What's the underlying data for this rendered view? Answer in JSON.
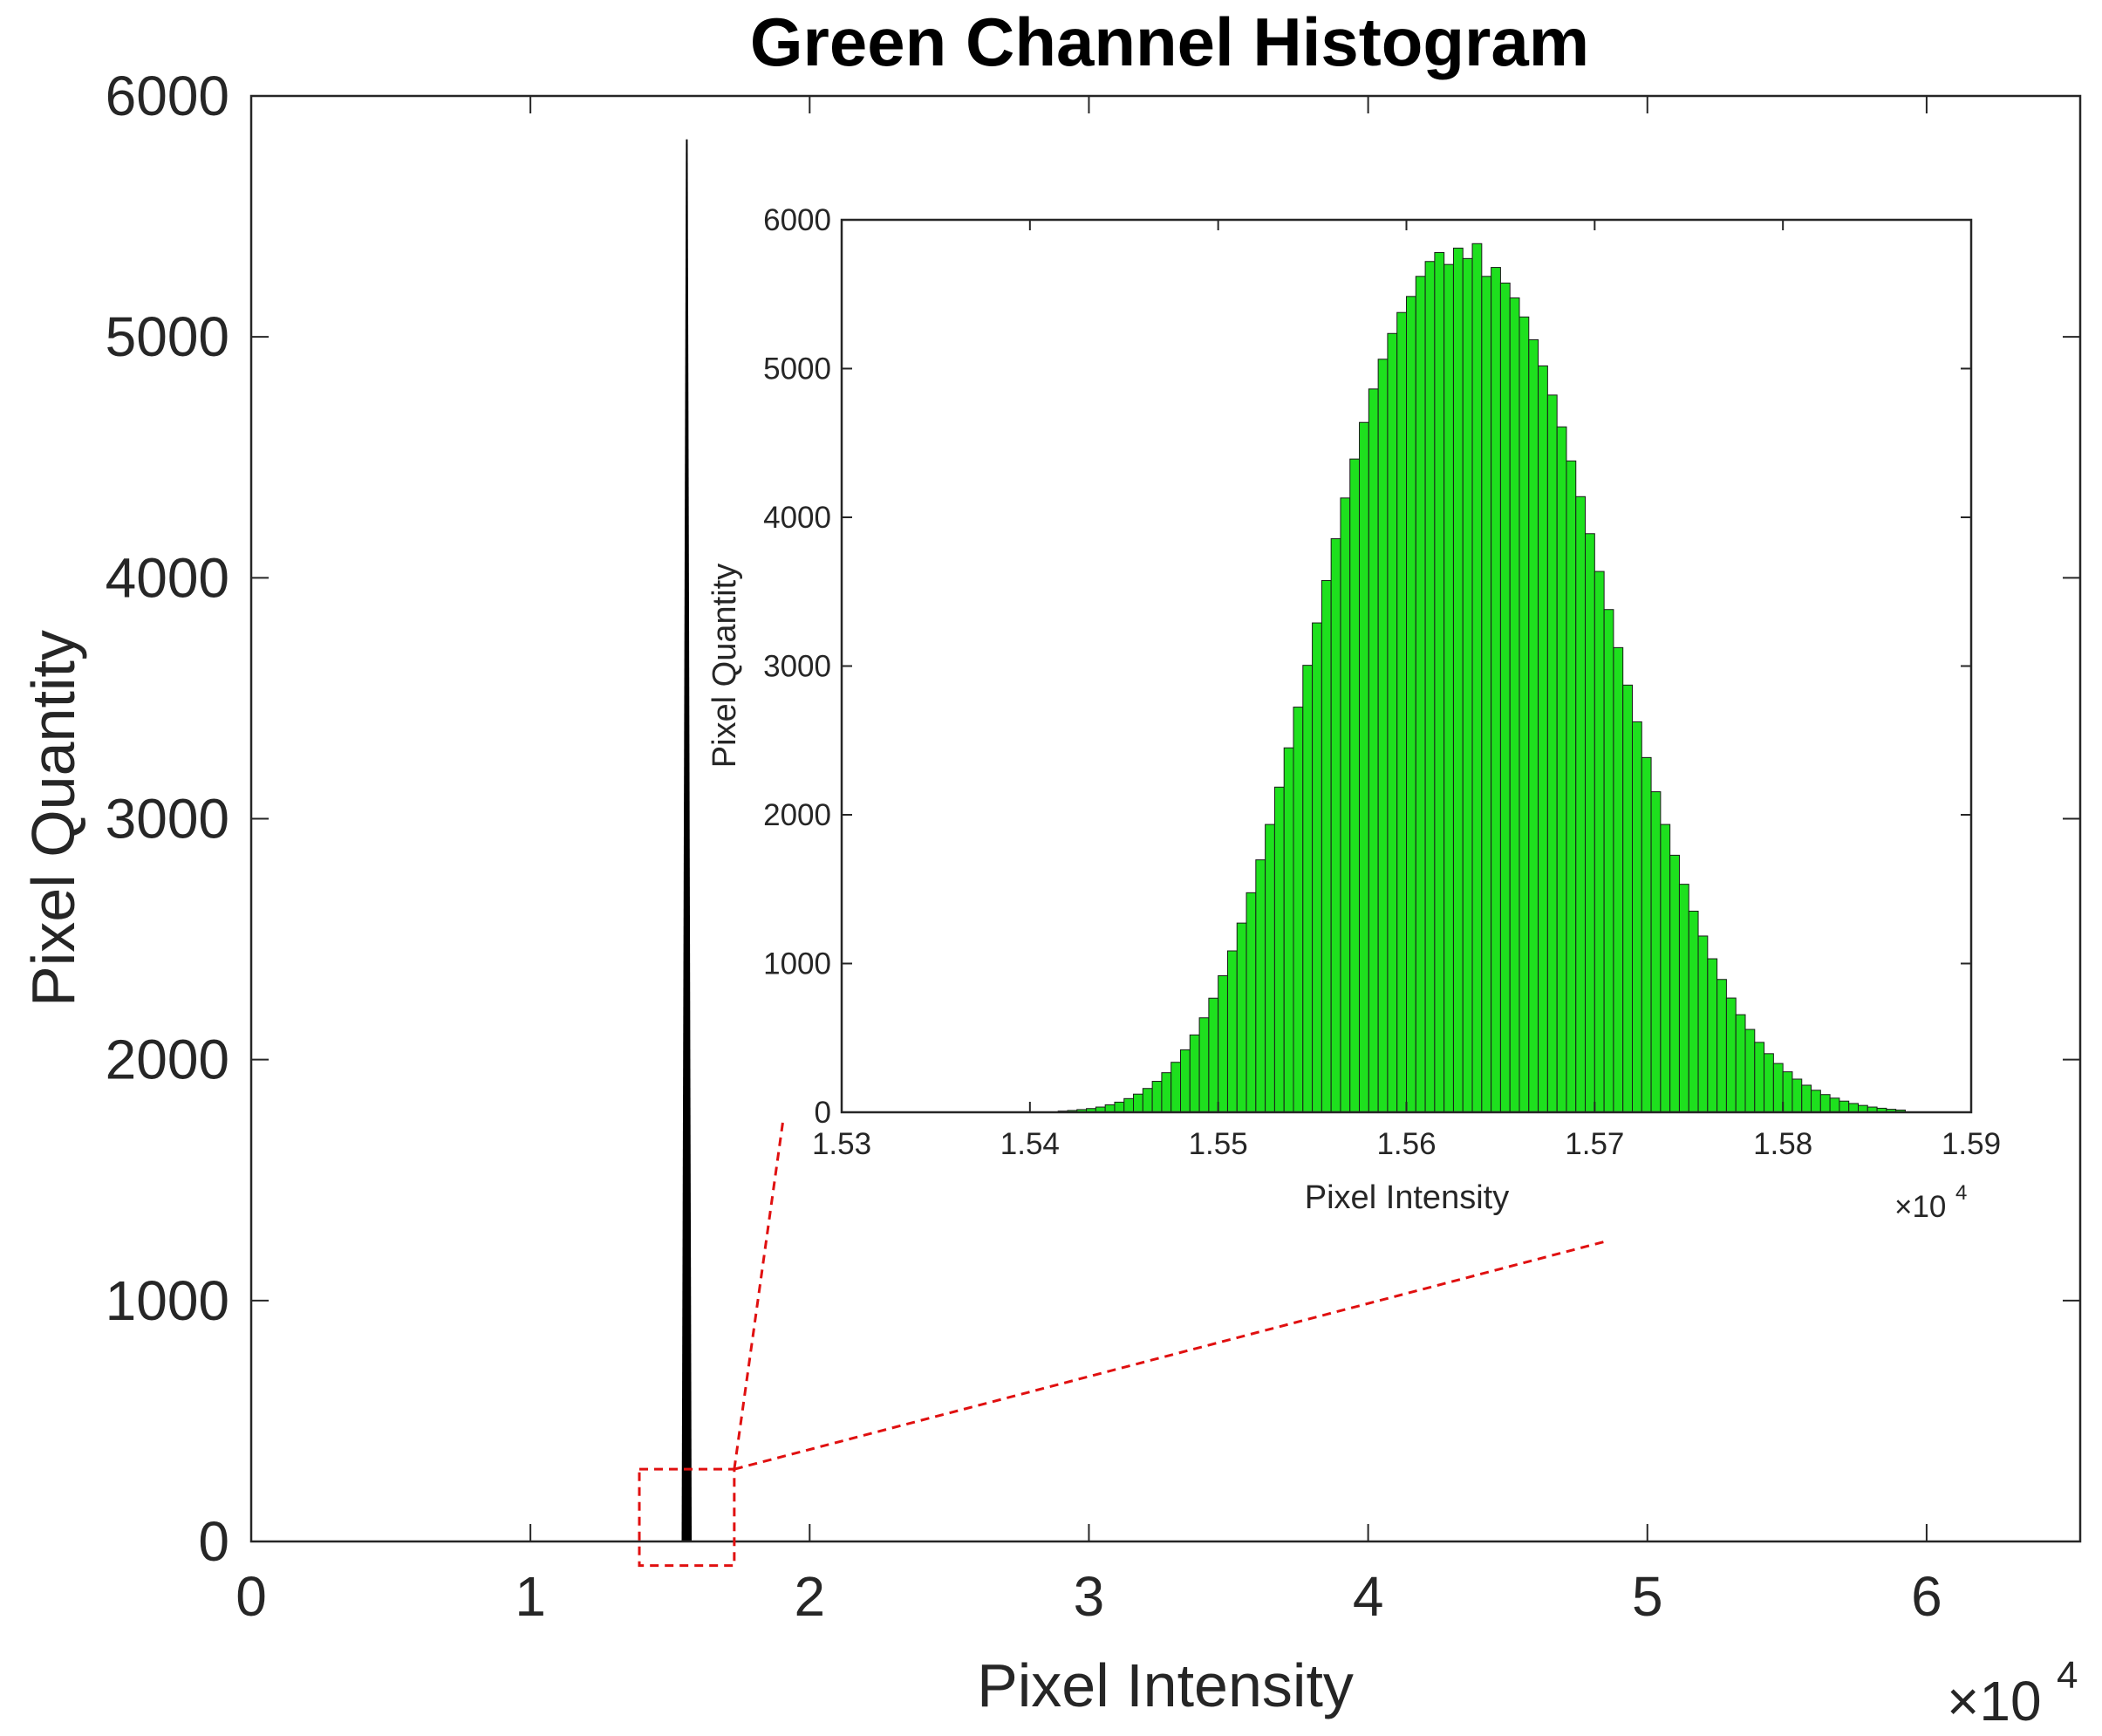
{
  "figure": {
    "title": "Green Channel Histogram",
    "bar_color": "#1ee01e",
    "spike_color": "#000000",
    "zoom_marker_color": "#e01010"
  },
  "chart_data": [
    {
      "type": "bar",
      "name": "main",
      "title": "Green Channel Histogram",
      "xlabel": "Pixel Intensity",
      "ylabel": "Pixel Quantity",
      "x_exponent": {
        "base": "×10",
        "power": "4"
      },
      "xlim": [
        0,
        6.55
      ],
      "ylim": [
        0,
        6000
      ],
      "xticks": [
        0,
        1,
        2,
        3,
        4,
        5,
        6
      ],
      "yticks": [
        0,
        1000,
        2000,
        3000,
        4000,
        5000,
        6000
      ],
      "grid": false,
      "spike": {
        "x_start": 1.5415,
        "x_peak": 1.56,
        "x_end": 1.5775,
        "peak": 5820
      },
      "zoom_box": {
        "xlim": [
          1.39,
          1.73
        ],
        "ylim": [
          -100,
          300
        ]
      }
    },
    {
      "type": "bar",
      "name": "inset",
      "xlabel": "Pixel Intensity",
      "ylabel": "Pixel Quantity",
      "x_exponent": {
        "base": "×10",
        "power": "4"
      },
      "xlim": [
        1.53,
        1.59
      ],
      "ylim": [
        0,
        6000
      ],
      "xticks": [
        1.53,
        1.54,
        1.55,
        1.56,
        1.57,
        1.58,
        1.59
      ],
      "yticks": [
        0,
        1000,
        2000,
        3000,
        4000,
        5000,
        6000
      ],
      "grid": false,
      "bin_start": 1.5415,
      "bin_width": 0.0005,
      "values": [
        8,
        12,
        18,
        25,
        35,
        50,
        68,
        92,
        122,
        160,
        208,
        266,
        336,
        420,
        520,
        635,
        767,
        918,
        1085,
        1272,
        1476,
        1697,
        1935,
        2186,
        2450,
        2724,
        3005,
        3290,
        3575,
        3856,
        4130,
        4392,
        4638,
        4863,
        5063,
        5236,
        5377,
        5485,
        5620,
        5720,
        5780,
        5700,
        5810,
        5740,
        5840,
        5620,
        5680,
        5575,
        5475,
        5347,
        5194,
        5018,
        4822,
        4608,
        4379,
        4139,
        3890,
        3636,
        3380,
        3124,
        2872,
        2625,
        2385,
        2155,
        1935,
        1728,
        1533,
        1352,
        1185,
        1032,
        893,
        768,
        656,
        557,
        470,
        394,
        328,
        272,
        223,
        182,
        148,
        119,
        95,
        75,
        59,
        46,
        35,
        27,
        20,
        15
      ]
    }
  ]
}
